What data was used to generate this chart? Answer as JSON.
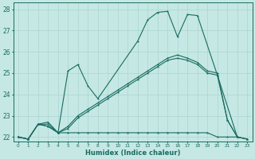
{
  "xlabel": "Humidex (Indice chaleur)",
  "bg_color": "#c5e8e5",
  "grid_color": "#aad4d0",
  "line_color": "#1a6b60",
  "xlim": [
    -0.5,
    23.5
  ],
  "ylim": [
    21.8,
    28.3
  ],
  "yticks": [
    22,
    23,
    24,
    25,
    26,
    27,
    28
  ],
  "xticks": [
    0,
    1,
    2,
    3,
    4,
    5,
    6,
    7,
    8,
    9,
    10,
    11,
    12,
    13,
    14,
    15,
    16,
    17,
    18,
    19,
    20,
    21,
    22,
    23
  ],
  "series": [
    {
      "x": [
        0,
        1,
        2,
        3,
        4,
        5,
        6,
        7,
        8,
        12,
        13,
        14,
        15,
        16,
        17,
        18,
        20,
        22
      ],
      "y": [
        22.0,
        21.9,
        22.6,
        22.7,
        22.2,
        25.1,
        25.4,
        24.4,
        23.8,
        26.5,
        27.5,
        27.85,
        27.9,
        26.7,
        27.75,
        27.7,
        24.9,
        22.0
      ]
    },
    {
      "x": [
        0,
        1,
        2,
        3,
        4,
        5,
        6,
        7,
        8,
        9,
        10,
        11,
        12,
        13,
        14,
        15,
        16,
        17,
        18,
        19,
        20,
        21,
        22,
        23
      ],
      "y": [
        22.0,
        21.9,
        22.6,
        22.5,
        22.2,
        22.2,
        22.2,
        22.2,
        22.2,
        22.2,
        22.2,
        22.2,
        22.2,
        22.2,
        22.2,
        22.2,
        22.2,
        22.2,
        22.2,
        22.2,
        22.0,
        22.0,
        22.0,
        21.9
      ]
    },
    {
      "x": [
        0,
        1,
        2,
        3,
        4,
        5,
        6,
        7,
        8,
        9,
        10,
        11,
        12,
        13,
        14,
        15,
        16,
        17,
        18,
        19,
        20,
        21,
        22,
        23
      ],
      "y": [
        22.0,
        21.9,
        22.6,
        22.5,
        22.2,
        22.4,
        22.9,
        23.2,
        23.5,
        23.8,
        24.1,
        24.4,
        24.7,
        25.0,
        25.3,
        25.6,
        25.7,
        25.6,
        25.4,
        25.0,
        24.9,
        22.8,
        22.0,
        21.9
      ]
    },
    {
      "x": [
        0,
        1,
        2,
        3,
        4,
        5,
        6,
        7,
        8,
        9,
        10,
        11,
        12,
        13,
        14,
        15,
        16,
        17,
        18,
        19,
        20,
        21,
        22,
        23
      ],
      "y": [
        22.0,
        21.9,
        22.6,
        22.6,
        22.2,
        22.5,
        23.0,
        23.3,
        23.6,
        23.9,
        24.2,
        24.5,
        24.8,
        25.1,
        25.4,
        25.7,
        25.85,
        25.7,
        25.5,
        25.1,
        25.0,
        22.8,
        22.0,
        21.9
      ]
    }
  ]
}
